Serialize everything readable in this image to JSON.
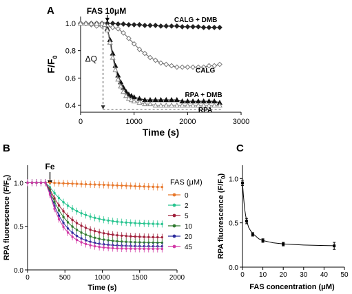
{
  "chart_data": [
    {
      "panel": "A",
      "type": "line",
      "xlabel": "Time (s)",
      "ylabel": "F/F",
      "ylabel_sub": "0",
      "xticks": [
        "0",
        "1000",
        "2000",
        "3000"
      ],
      "yticks": [
        "0.4",
        "0.6",
        "0.8",
        "1.0"
      ],
      "xlim": [
        0,
        3000
      ],
      "ylim": [
        0.35,
        1.05
      ],
      "annotation_top": "FAS 10μM",
      "annotation_top_x": 500,
      "annotation_delta": "ΔQ",
      "baseline_y": 0.37,
      "series": [
        {
          "name": "CALG + DMB",
          "marker": "diamond-filled",
          "color": "#222222",
          "x": [
            0,
            100,
            200,
            300,
            400,
            500,
            600,
            700,
            800,
            900,
            1000,
            1100,
            1200,
            1300,
            1400,
            1500,
            1600,
            1700,
            1800,
            1900,
            2000,
            2100,
            2200,
            2300,
            2400,
            2500,
            2600
          ],
          "y": [
            1.0,
            1.0,
            1.0,
            1.0,
            1.0,
            1.0,
            1.0,
            0.995,
            0.995,
            0.99,
            0.99,
            0.99,
            0.985,
            0.985,
            0.985,
            0.98,
            0.98,
            0.98,
            0.98,
            0.975,
            0.975,
            0.975,
            0.975,
            0.97,
            0.97,
            0.97,
            0.97
          ]
        },
        {
          "name": "CALG",
          "marker": "diamond-open",
          "color": "#777777",
          "x": [
            0,
            100,
            200,
            300,
            400,
            500,
            600,
            700,
            800,
            900,
            1000,
            1100,
            1200,
            1300,
            1400,
            1500,
            1600,
            1700,
            1800,
            1900,
            2000,
            2100,
            2200,
            2300,
            2400,
            2500,
            2600
          ],
          "y": [
            1.0,
            1.0,
            0.99,
            0.98,
            0.98,
            0.98,
            0.97,
            0.96,
            0.93,
            0.89,
            0.85,
            0.81,
            0.78,
            0.75,
            0.73,
            0.71,
            0.7,
            0.69,
            0.68,
            0.68,
            0.68,
            0.68,
            0.68,
            0.68,
            0.69,
            0.69,
            0.7
          ]
        },
        {
          "name": "RPA + DMB",
          "marker": "triangle-filled",
          "color": "#111111",
          "x": [
            0,
            100,
            200,
            300,
            400,
            450,
            500,
            550,
            600,
            650,
            700,
            750,
            800,
            850,
            900,
            950,
            1000,
            1100,
            1200,
            1300,
            1400,
            1500,
            1600,
            1700,
            1800,
            1900,
            2000,
            2100,
            2200,
            2300,
            2400,
            2500,
            2600
          ],
          "y": [
            1.0,
            1.0,
            1.0,
            1.0,
            1.0,
            0.99,
            0.96,
            0.88,
            0.78,
            0.69,
            0.62,
            0.57,
            0.53,
            0.5,
            0.48,
            0.47,
            0.46,
            0.45,
            0.44,
            0.44,
            0.44,
            0.44,
            0.44,
            0.44,
            0.44,
            0.43,
            0.43,
            0.43,
            0.43,
            0.43,
            0.43,
            0.43,
            0.42
          ]
        },
        {
          "name": "RPA",
          "marker": "triangle-open",
          "color": "#888888",
          "x": [
            0,
            100,
            200,
            300,
            400,
            450,
            500,
            550,
            600,
            650,
            700,
            750,
            800,
            850,
            900,
            950,
            1000,
            1100,
            1200,
            1300,
            1400,
            1500,
            1600,
            1700,
            1800,
            1900,
            2000,
            2100,
            2200,
            2300,
            2400,
            2500,
            2600
          ],
          "y": [
            1.0,
            1.0,
            1.0,
            1.0,
            1.0,
            0.99,
            0.95,
            0.86,
            0.75,
            0.66,
            0.59,
            0.54,
            0.5,
            0.47,
            0.45,
            0.44,
            0.43,
            0.42,
            0.41,
            0.41,
            0.4,
            0.4,
            0.4,
            0.4,
            0.4,
            0.4,
            0.4,
            0.4,
            0.4,
            0.4,
            0.4,
            0.4,
            0.4
          ]
        }
      ]
    },
    {
      "panel": "B",
      "type": "line",
      "xlabel": "Time (s)",
      "ylabel": "RPA fluorescence (F/F",
      "ylabel_sub": "0",
      "ylabel_end": ")",
      "xticks": [
        "0",
        "500",
        "1000",
        "1500",
        "2000"
      ],
      "yticks": [
        "0.0",
        "0.5",
        "1.0"
      ],
      "xlim": [
        0,
        2000
      ],
      "ylim": [
        0,
        1.2
      ],
      "annotation_top": "Fe",
      "annotation_top_x": 300,
      "legend_title": "FAS (μM)",
      "series": [
        {
          "name": "0",
          "color": "#e8772a",
          "tau": 1,
          "plateau": 0.95,
          "err": 0.04
        },
        {
          "name": "2",
          "color": "#27c48f",
          "tau": 350,
          "plateau": 0.52,
          "err": 0.04
        },
        {
          "name": "5",
          "color": "#a0203b",
          "tau": 300,
          "plateau": 0.37,
          "err": 0.04
        },
        {
          "name": "10",
          "color": "#2f7a2f",
          "tau": 260,
          "plateau": 0.31,
          "err": 0.04
        },
        {
          "name": "20",
          "color": "#2a2a9c",
          "tau": 220,
          "plateau": 0.27,
          "err": 0.04
        },
        {
          "name": "45",
          "color": "#d23aa6",
          "tau": 200,
          "plateau": 0.24,
          "err": 0.04
        }
      ],
      "x_start": 0,
      "x_step": 60,
      "x_end": 1800,
      "injection_time": 260
    },
    {
      "panel": "C",
      "type": "scatter",
      "xlabel": "FAS concentration (μM)",
      "ylabel": "RPA fluorescence (F/F",
      "ylabel_sub": "0",
      "ylabel_end": ")",
      "xticks": [
        "0",
        "10",
        "20",
        "30",
        "40",
        "50"
      ],
      "yticks": [
        "0.0",
        "0.5",
        "1.0"
      ],
      "xlim": [
        0,
        50
      ],
      "ylim": [
        0,
        1.15
      ],
      "points": {
        "x": [
          0,
          2,
          5,
          10,
          20,
          45
        ],
        "y": [
          0.95,
          0.52,
          0.37,
          0.3,
          0.26,
          0.24
        ],
        "err": [
          0.03,
          0.03,
          0.02,
          0.02,
          0.02,
          0.04
        ]
      },
      "fit": {
        "x": [
          0,
          0.5,
          1,
          1.5,
          2,
          3,
          4,
          5,
          6,
          8,
          10,
          12,
          15,
          20,
          25,
          30,
          35,
          40,
          45
        ],
        "y": [
          0.95,
          0.8,
          0.67,
          0.59,
          0.53,
          0.45,
          0.41,
          0.38,
          0.36,
          0.32,
          0.3,
          0.29,
          0.275,
          0.262,
          0.255,
          0.25,
          0.247,
          0.244,
          0.242
        ]
      }
    }
  ],
  "panel_labels": {
    "a": "A",
    "b": "B",
    "c": "C"
  }
}
